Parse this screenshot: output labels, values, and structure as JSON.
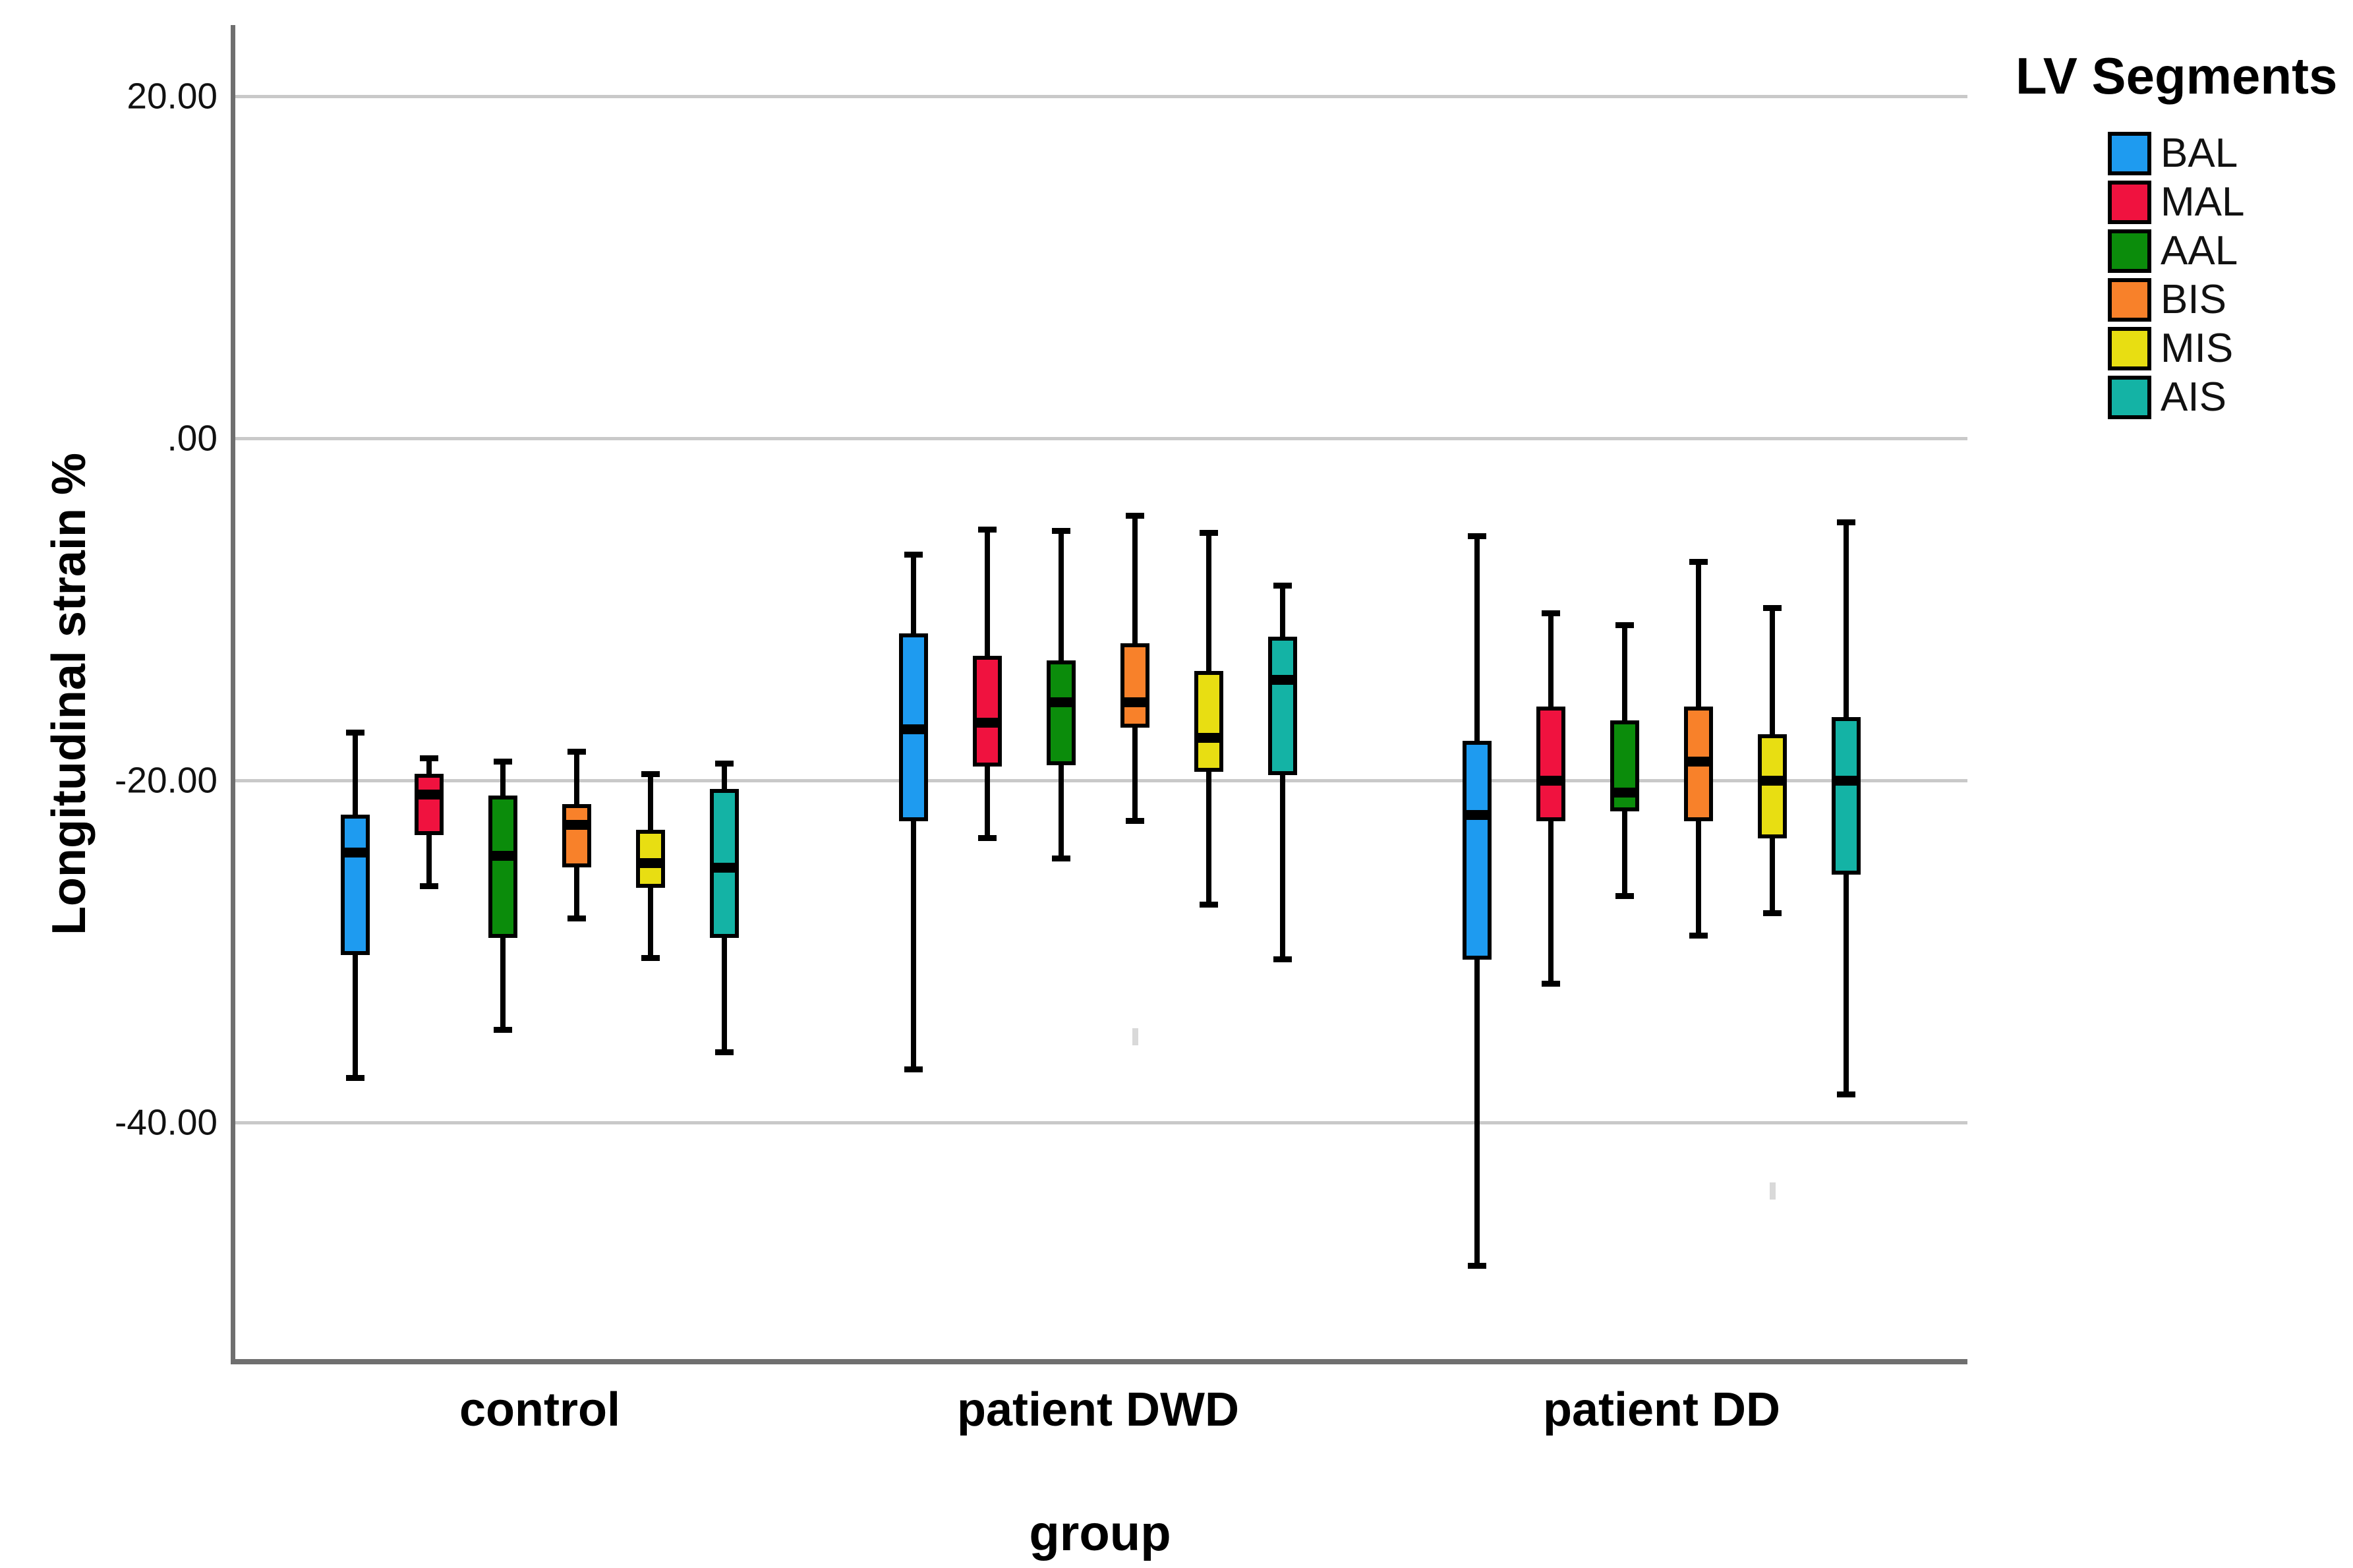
{
  "chart_data": {
    "type": "boxplot",
    "title": "",
    "ylabel": "Longitudinal strain %",
    "xlabel": "group",
    "legend_title": "LV Segments",
    "legend_position": "top-right",
    "grid": "horizontal",
    "ylim": [
      -54,
      24
    ],
    "yticks": [
      {
        "label": "20.00",
        "value": 20
      },
      {
        "label": ".00",
        "value": 0
      },
      {
        "label": "-20.00",
        "value": -20
      },
      {
        "label": "-40.00",
        "value": -40
      }
    ],
    "groups": [
      "control",
      "patient DWD",
      "patient DD"
    ],
    "segments": [
      {
        "name": "BAL",
        "color": "#1e9bf0",
        "stats": [
          {
            "group": "control",
            "whisker_high": -17.2,
            "q3": -22.0,
            "median": -24.2,
            "q1": -30.2,
            "whisker_low": -37.4
          },
          {
            "group": "patient DWD",
            "whisker_high": -6.8,
            "q3": -11.4,
            "median": -17.0,
            "q1": -22.4,
            "whisker_low": -36.9
          },
          {
            "group": "patient DD",
            "whisker_high": -5.7,
            "q3": -17.7,
            "median": -22.0,
            "q1": -30.5,
            "whisker_low": -48.4
          }
        ]
      },
      {
        "name": "MAL",
        "color": "#f0123f",
        "stats": [
          {
            "group": "control",
            "whisker_high": -18.7,
            "q3": -19.6,
            "median": -20.8,
            "q1": -23.2,
            "whisker_low": -26.2
          },
          {
            "group": "patient DWD",
            "whisker_high": -5.3,
            "q3": -12.7,
            "median": -16.6,
            "q1": -19.2,
            "whisker_low": -23.4
          },
          {
            "group": "patient DD",
            "whisker_high": -10.2,
            "q3": -15.7,
            "median": -20.0,
            "q1": -22.4,
            "whisker_low": -31.9
          }
        ]
      },
      {
        "name": "AAL",
        "color": "#0b8c0b",
        "stats": [
          {
            "group": "control",
            "whisker_high": -18.9,
            "q3": -20.9,
            "median": -24.4,
            "q1": -29.2,
            "whisker_low": -34.6
          },
          {
            "group": "patient DWD",
            "whisker_high": -5.4,
            "q3": -13.0,
            "median": -15.4,
            "q1": -19.1,
            "whisker_low": -24.6
          },
          {
            "group": "patient DD",
            "whisker_high": -10.9,
            "q3": -16.5,
            "median": -20.7,
            "q1": -21.8,
            "whisker_low": -26.8
          }
        ]
      },
      {
        "name": "BIS",
        "color": "#f8812a",
        "stats": [
          {
            "group": "control",
            "whisker_high": -18.3,
            "q3": -21.4,
            "median": -22.6,
            "q1": -25.1,
            "whisker_low": -28.1
          },
          {
            "group": "patient DWD",
            "whisker_high": -4.5,
            "q3": -12.0,
            "median": -15.4,
            "q1": -16.9,
            "whisker_low": -22.4
          },
          {
            "group": "patient DD",
            "whisker_high": -7.2,
            "q3": -15.7,
            "median": -18.9,
            "q1": -22.4,
            "whisker_low": -29.1
          }
        ]
      },
      {
        "name": "MIS",
        "color": "#e8de12",
        "stats": [
          {
            "group": "control",
            "whisker_high": -19.6,
            "q3": -22.9,
            "median": -24.8,
            "q1": -26.3,
            "whisker_low": -30.4
          },
          {
            "group": "patient DWD",
            "whisker_high": -5.5,
            "q3": -13.6,
            "median": -17.5,
            "q1": -19.5,
            "whisker_low": -27.3
          },
          {
            "group": "patient DD",
            "whisker_high": -9.9,
            "q3": -17.3,
            "median": -20.0,
            "q1": -23.4,
            "whisker_low": -27.8
          }
        ]
      },
      {
        "name": "AIS",
        "color": "#14b3a5",
        "stats": [
          {
            "group": "control",
            "whisker_high": -19.0,
            "q3": -20.5,
            "median": -25.1,
            "q1": -29.2,
            "whisker_low": -35.9
          },
          {
            "group": "patient DWD",
            "whisker_high": -8.6,
            "q3": -11.6,
            "median": -14.1,
            "q1": -19.7,
            "whisker_low": -30.5
          },
          {
            "group": "patient DD",
            "whisker_high": -4.9,
            "q3": -16.3,
            "median": -20.0,
            "q1": -25.5,
            "whisker_low": -38.4
          }
        ]
      }
    ],
    "faint_outlier_marks": [
      {
        "group_index": 1,
        "segment_index": 3,
        "value": -35.0
      },
      {
        "group_index": 2,
        "segment_index": 4,
        "value": -44.0
      }
    ]
  }
}
